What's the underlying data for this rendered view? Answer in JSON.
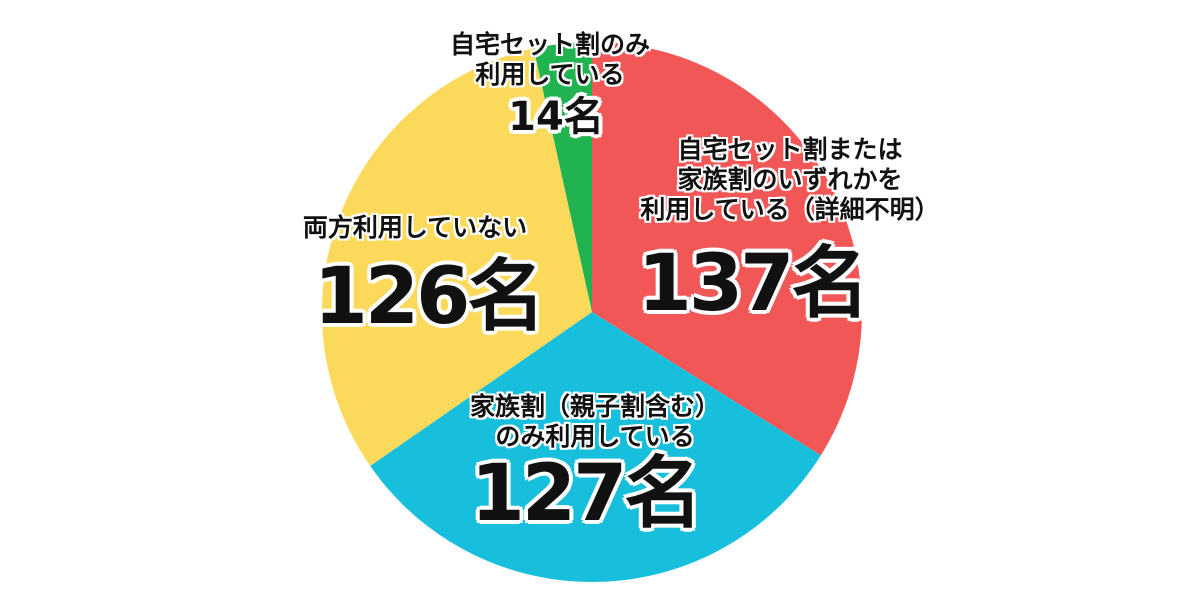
{
  "chart_data": {
    "type": "pie",
    "categories": [
      "自宅セット割または\n家族割のいずれかを\n利用している（詳細不明）",
      "家族割（親子割含む）\nのみ利用している",
      "両方利用していない",
      "自宅セット割のみ\n利用している"
    ],
    "values": [
      137,
      127,
      126,
      14
    ],
    "value_labels": [
      "137名",
      "127名",
      "126名",
      "14名"
    ],
    "colors": [
      "#f25757",
      "#18bfdc",
      "#fbd95a",
      "#20b350"
    ]
  }
}
